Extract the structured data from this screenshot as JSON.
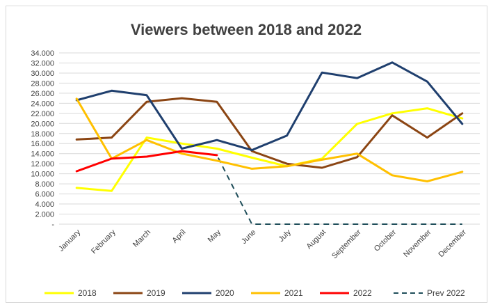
{
  "chart_data": {
    "type": "line",
    "title": "Viewers between 2018 and 2022",
    "xlabel": "",
    "ylabel": "",
    "categories": [
      "January",
      "February",
      "March",
      "April",
      "May",
      "June",
      "July",
      "August",
      "September",
      "October",
      "November",
      "December"
    ],
    "y_ticks": [
      "34.000",
      "32.000",
      "30.000",
      "28.000",
      "26.000",
      "24.000",
      "22.000",
      "20.000",
      "18.000",
      "16.000",
      "14.000",
      "12.000",
      "10.000",
      "8.000",
      "6.000",
      "4.000",
      "2.000",
      "-"
    ],
    "ylim": [
      0,
      34000
    ],
    "grid": "horizontal",
    "legend_position": "bottom",
    "series": [
      {
        "name": "2018",
        "color": "#ffff00",
        "dashed": false,
        "values": [
          7200,
          6600,
          17200,
          16000,
          15000,
          13200,
          11500,
          13000,
          19900,
          22000,
          23000,
          21000
        ]
      },
      {
        "name": "2019",
        "color": "#8b4513",
        "dashed": false,
        "values": [
          16800,
          17200,
          24300,
          25000,
          24300,
          14500,
          12000,
          11200,
          13300,
          21600,
          17200,
          22000
        ]
      },
      {
        "name": "2020",
        "color": "#1f3f6e",
        "dashed": false,
        "values": [
          24600,
          26500,
          25600,
          15000,
          16700,
          14700,
          17600,
          30100,
          29000,
          32100,
          28300,
          19900
        ]
      },
      {
        "name": "2021",
        "color": "#ffc000",
        "dashed": false,
        "values": [
          24900,
          13000,
          16700,
          14000,
          12600,
          11000,
          11500,
          12800,
          14000,
          9700,
          8500,
          10400
        ]
      },
      {
        "name": "2022",
        "color": "#ff0000",
        "dashed": false,
        "values": [
          10500,
          13000,
          13400,
          14500,
          13700,
          null,
          null,
          null,
          null,
          null,
          null,
          null
        ]
      },
      {
        "name": "Prev 2022",
        "color": "#1f4e5a",
        "dashed": true,
        "values": [
          10500,
          13000,
          13400,
          14500,
          13700,
          0,
          0,
          0,
          0,
          0,
          0,
          0
        ]
      }
    ]
  }
}
